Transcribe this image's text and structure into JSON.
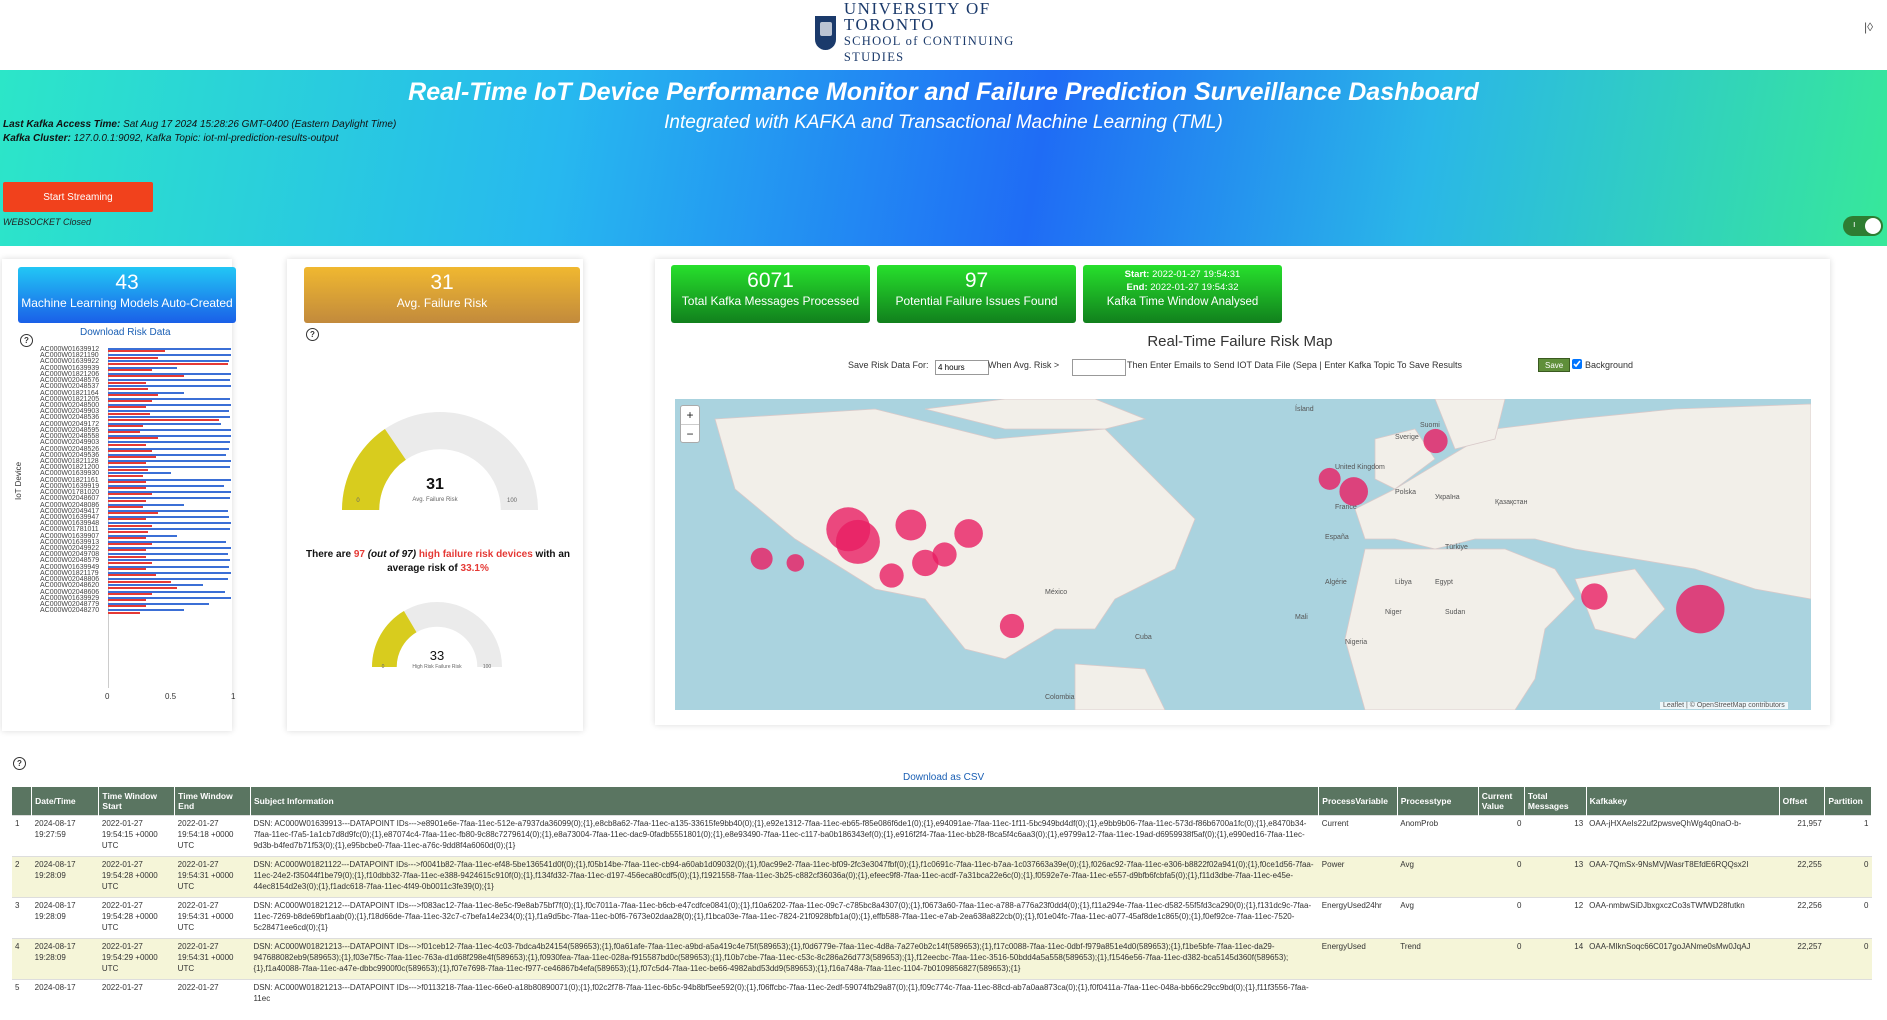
{
  "header": {
    "logo_line1": "UNIVERSITY OF TORONTO",
    "logo_line2": "SCHOOL of CONTINUING STUDIES",
    "corner": "|◊"
  },
  "hero": {
    "title": "Real-Time IoT Device Performance Monitor and Failure Prediction Surveillance Dashboard",
    "subtitle": "Integrated with KAFKA and Transactional Machine Learning (TML)",
    "access_label": "Last Kafka Access Time:",
    "access_value": "Sat Aug 17 2024 15:28:26 GMT-0400 (Eastern Daylight Time)",
    "cluster_label": "Kafka Cluster:",
    "cluster_value": "127.0.0.1:9092, Kafka Topic: iot-ml-prediction-results-output",
    "start_button": "Start Streaming",
    "ws_status": "WEBSOCKET Closed",
    "toggle_glyph": "ı"
  },
  "kpis": {
    "models": {
      "value": "43",
      "label": "Machine Learning Models Auto-Created"
    },
    "avg_risk": {
      "value": "31",
      "label": "Avg. Failure Risk"
    },
    "messages": {
      "value": "6071",
      "label": "Total Kafka Messages Processed"
    },
    "issues": {
      "value": "97",
      "label": "Potential Failure Issues Found"
    },
    "window": {
      "start_label": "Start:",
      "start": "2022-01-27 19:54:31",
      "end_label": "End:",
      "end": "2022-01-27 19:54:32",
      "label": "Kafka Time Window Analysed"
    }
  },
  "left_panel": {
    "download": "Download Risk Data",
    "y_axis": "IoT Device",
    "x_ticks": [
      "0",
      "0.5",
      "1"
    ],
    "devices": [
      "AC000W01639912",
      "AC000W01821190",
      "AC000W01639922",
      "AC000W01639939",
      "AC000W01821206",
      "AC000W02048576",
      "AC000W02048537",
      "AC000W01821164",
      "AC000W01821205",
      "AC000W02048500",
      "AC000W02049903",
      "AC000W02048536",
      "AC000W02049172",
      "AC000W02048595",
      "AC000W02048558",
      "AC000W02049903",
      "AC000W02048526",
      "AC000W02049536",
      "AC000W01821128",
      "AC000W01821200",
      "AC000W01639930",
      "AC000W01821161",
      "AC000W01639919",
      "AC000W01781020",
      "AC000W02048607",
      "AC000W02048086",
      "AC000W02049417",
      "AC000W01639947",
      "AC000W01639948",
      "AC000W01781011",
      "AC000W01639907",
      "AC000W01639913",
      "AC000W02049922",
      "AC000W02049708",
      "AC000W02048579",
      "AC000W01639949",
      "AC000W01821179",
      "AC000W02048806",
      "AC000W02048620",
      "AC000W02048606",
      "AC000W01639929",
      "AC000W02048779",
      "AC000W02048270"
    ],
    "blue_values": [
      0.98,
      0.98,
      0.96,
      0.55,
      0.98,
      0.97,
      0.98,
      0.6,
      0.97,
      0.98,
      0.96,
      0.97,
      0.9,
      0.98,
      0.98,
      0.97,
      0.96,
      0.94,
      0.98,
      0.97,
      0.5,
      0.98,
      0.92,
      0.98,
      0.97,
      0.6,
      0.95,
      0.96,
      0.98,
      0.97,
      0.55,
      0.94,
      0.98,
      0.95,
      0.97,
      0.96,
      0.98,
      0.95,
      0.75,
      0.93,
      0.98,
      0.8,
      0.6
    ],
    "red_values": [
      0.45,
      0.4,
      0.95,
      0.35,
      0.6,
      0.3,
      0.32,
      0.4,
      0.35,
      0.3,
      0.33,
      0.88,
      0.28,
      0.25,
      0.4,
      0.3,
      0.35,
      0.38,
      0.3,
      0.32,
      0.28,
      0.3,
      0.3,
      0.35,
      0.3,
      0.28,
      0.4,
      0.3,
      0.35,
      0.32,
      0.3,
      0.35,
      0.3,
      0.3,
      0.35,
      0.3,
      0.38,
      0.5,
      0.55,
      0.35,
      0.3,
      0.3,
      0.25
    ]
  },
  "gauges": {
    "avg": {
      "value": "31",
      "caption": "Avg. Failure Risk",
      "min": "0",
      "max": "100",
      "fraction": 0.31
    },
    "high": {
      "value": "33",
      "caption": "High Risk Failure Risk",
      "min": "0",
      "max": "100",
      "fraction": 0.33
    },
    "text_pre": "There are",
    "count": "97",
    "of_total": "(out of 97)",
    "risk_phrase": "high failure risk devices",
    "text_mid": "with an average risk of",
    "avg_pct": "33.1%"
  },
  "map": {
    "title": "Real-Time Failure Risk Map",
    "save_label": "Save Risk Data For:",
    "save_value": "4 hours",
    "when_label": "When Avg. Risk >",
    "when_value": "",
    "email_text": "Then Enter Emails to Send IOT Data File (Sepa | Enter Kafka Topic To Save Results",
    "save_button": "Save",
    "background_label": "Background",
    "zoom_in": "+",
    "zoom_out": "−",
    "attribution": "Leaflet | © OpenStreetMap contributors",
    "place_labels": [
      {
        "text": "Ísland"
      },
      {
        "text": "Suomi"
      },
      {
        "text": "Sverige"
      },
      {
        "text": "United Kingdom"
      },
      {
        "text": "France"
      },
      {
        "text": "España"
      },
      {
        "text": "Polska"
      },
      {
        "text": "Україна"
      },
      {
        "text": "Қазақстан"
      },
      {
        "text": "Türkiye"
      },
      {
        "text": "Algérie"
      },
      {
        "text": "Libya"
      },
      {
        "text": "Mali"
      },
      {
        "text": "Niger"
      },
      {
        "text": "Nigeria"
      },
      {
        "text": "México"
      },
      {
        "text": "Colombia"
      },
      {
        "text": "Cuba"
      },
      {
        "text": "Sudan"
      },
      {
        "text": "Egypt"
      }
    ],
    "hotspots": [
      {
        "lon": -100,
        "lat": 41,
        "size": 2
      },
      {
        "lon": -98,
        "lat": 38,
        "size": 2
      },
      {
        "lon": -87,
        "lat": 42,
        "size": 1.4
      },
      {
        "lon": -84,
        "lat": 33,
        "size": 1.2
      },
      {
        "lon": -80,
        "lat": 35,
        "size": 1.1
      },
      {
        "lon": -75,
        "lat": 40,
        "size": 1.3
      },
      {
        "lon": -118,
        "lat": 34,
        "size": 1.0
      },
      {
        "lon": -91,
        "lat": 30,
        "size": 1.1
      },
      {
        "lon": -111,
        "lat": 33,
        "size": 0.8
      },
      {
        "lon": -66,
        "lat": 18,
        "size": 1.1
      },
      {
        "lon": 5,
        "lat": 50,
        "size": 1.3
      },
      {
        "lon": 0,
        "lat": 53,
        "size": 1.0
      },
      {
        "lon": 22,
        "lat": 62,
        "size": 1.1
      },
      {
        "lon": 55,
        "lat": 25,
        "size": 1.2
      },
      {
        "lon": 77,
        "lat": 22,
        "size": 2.2
      }
    ]
  },
  "table": {
    "download": "Download as CSV",
    "headers": [
      "",
      "Date/Time",
      "Time Window Start",
      "Time Window End",
      "Subject Information",
      "ProcessVariable",
      "Processtype",
      "Current Value",
      "Total Messages",
      "Kafkakey",
      "Offset",
      "Partition"
    ],
    "rows": [
      [
        "1",
        "2024-08-17 19:27:59",
        "2022-01-27 19:54:15 +0000 UTC",
        "2022-01-27 19:54:18 +0000 UTC",
        "DSN: AC000W01639913---DATAPOINT IDs--->e8901e6e-7faa-11ec-512e-a7937da36099(0);{1},e8cb8a62-7faa-11ec-a135-33615fe9bb40(0);{1},e92e1312-7faa-11ec-eb65-f85e086f6de1(0);{1},e94091ae-7faa-11ec-1f11-5bc949bd4df(0);{1},e9bb9b06-7faa-11ec-573d-f86b6700a1fc(0);{1},e8470b34-7faa-11ec-f7a5-1a1cb7d8d9fc(0);{1},e87074c4-7faa-11ec-fb80-9c88c7279614(0);{1},e8a73004-7faa-11ec-dac9-0fadb5551801(0);{1},e8e93490-7faa-11ec-c117-ba0b186343ef(0);{1},e916f2f4-7faa-11ec-bb28-f8ca5f4c6aa3(0);{1},e9799a12-7faa-11ec-19ad-d6959938f5af(0);{1},e990ed16-7faa-11ec-9d3b-b4fed7b71f53(0);{1},e95bcbe0-7faa-11ec-a76c-9dd8f4a6060d(0);{1}",
        "Current",
        "AnomProb",
        "0",
        "13",
        "OAA-jHXAeIs22uf2pwsveQhWg4q0naO-b-",
        "21,957",
        "1"
      ],
      [
        "2",
        "2024-08-17 19:28:09",
        "2022-01-27 19:54:28 +0000 UTC",
        "2022-01-27 19:54:31 +0000 UTC",
        "DSN: AC000W01821122---DATAPOINT IDs--->f0041b82-7faa-11ec-ef48-5be136541d0f(0);{1},f05b14be-7faa-11ec-cb94-a60ab1d09032(0);{1},f0ac99e2-7faa-11ec-bf09-2fc3e3047fbf(0);{1},f1c0691c-7faa-11ec-b7aa-1c037663a39e(0);{1},f026ac92-7faa-11ec-e306-b8822f02a941(0);{1},f0ce1d56-7faa-11ec-24e2-f35044f1be79(0);{1},f10dbb32-7faa-11ec-e388-9424615c910f(0);{1},f134fd32-7faa-11ec-d197-456eca80cdf5(0);{1},f1921558-7faa-11ec-3b25-c882cf36036a(0);{1},efeec9f8-7faa-11ec-acdf-7a31bca22e6c(0);{1},f0592e7e-7faa-11ec-e557-d9bfb6fcbfa5(0);{1},f11d3dbe-7faa-11ec-e45e-44ec8154d2e3(0);{1},f1adc618-7faa-11ec-4f49-0b0011c3fe39(0);{1}",
        "Power",
        "Avg",
        "0",
        "13",
        "OAA-7QmSx-9NsMVjWasrT8EfdE6RQQsx2I",
        "22,255",
        "0"
      ],
      [
        "3",
        "2024-08-17 19:28:09",
        "2022-01-27 19:54:28 +0000 UTC",
        "2022-01-27 19:54:31 +0000 UTC",
        "DSN: AC000W01821212---DATAPOINT IDs--->f083ac12-7faa-11ec-8e5c-f9e8ab75bf7f(0);{1},f0c7011a-7faa-11ec-b6cb-e47cdfce0841(0);{1},f10a6202-7faa-11ec-09c7-c785bc8a4307(0);{1},f0673a60-7faa-11ec-a788-a776a23f0dd4(0);{1},f11a294e-7faa-11ec-d582-55f5fd3ca290(0);{1},f131dc9c-7faa-11ec-7269-b8de69bf1aab(0);{1},f18d66de-7faa-11ec-32c7-c7befa14e234(0);{1},f1a9d5bc-7faa-11ec-b0f6-7673e02daa28(0);{1},f1bca03e-7faa-11ec-7824-21f0928bfb1a(0);{1},effb588-7faa-11ec-e7ab-2ea638a822cb(0);{1},f01e04fc-7faa-11ec-a077-45af8de1c865(0);{1},f0ef92ce-7faa-11ec-7520-5c28471ee6cd(0);{1}",
        "EnergyUsed24hr",
        "Avg",
        "0",
        "12",
        "OAA-nmbwSiDJbxgxczCo3sTWfWD28futkn",
        "22,256",
        "0"
      ],
      [
        "4",
        "2024-08-17 19:28:09",
        "2022-01-27 19:54:29 +0000 UTC",
        "2022-01-27 19:54:31 +0000 UTC",
        "DSN: AC000W01821213---DATAPOINT IDs--->f01ceb12-7faa-11ec-4c03-7bdca4b24154(589653);{1},f0a61afe-7faa-11ec-a9bd-a5a419c4e75f(589653);{1},f0d6779e-7faa-11ec-4d8a-7a27e0b2c14f(589653);{1},f17c0088-7faa-11ec-0dbf-f979a851e4d0(589653);{1},f1be5bfe-7faa-11ec-da29-947688082eb9(589653);{1},f03e7f5c-7faa-11ec-763a-d1d68f298e4f(589653);{1},f0930fea-7faa-11ec-028a-f915587bd0c(589653);{1},f10b7cbe-7faa-11ec-c53c-8c286a26d773(589653);{1},f12eecbc-7faa-11ec-3516-50bdd4a5a558(589653);{1},f1546e56-7faa-11ec-d382-bca5145d360f(589653);{1},f1a40088-7faa-11ec-a47e-dbbc9900f0c(589653);{1},f07e7698-7faa-11ec-f977-ce46867b4efa(589653);{1},f07c5d4-7faa-11ec-be66-4982abd53dd9(589653);{1},f16a748a-7faa-11ec-1104-7b0109856827(589653);{1}",
        "EnergyUsed",
        "Trend",
        "0",
        "14",
        "OAA-MIknSoqc66C017goJANme0sMw0JqAJ",
        "22,257",
        "0"
      ],
      [
        "5",
        "2024-08-17",
        "2022-01-27",
        "2022-01-27",
        "DSN: AC000W01821213---DATAPOINT IDs--->f0113218-7faa-11ec-66e0-a18b80890071(0);{1},f02c2f78-7faa-11ec-6b5c-94b8bf5ee592(0);{1},f06ffcbc-7faa-11ec-2edf-59074fb29a87(0);{1},f09c774c-7faa-11ec-88cd-ab7a0aa873ca(0);{1},f0f0411a-7faa-11ec-048a-bb66c29cc9bd(0);{1},f11f3556-7faa-11ec",
        "",
        "",
        "",
        "",
        "",
        "",
        ""
      ]
    ]
  },
  "colors": {
    "accent_blue": "#1a5fb4",
    "kpi_blue": "#1aa8ef",
    "kpi_gold": "#d9a52a",
    "kpi_green": "#19b52a",
    "start_button": "#f1411c",
    "table_header": "#5a7561",
    "gauge_fill": "#d8cc1e",
    "hotspot": "#e91e63"
  }
}
